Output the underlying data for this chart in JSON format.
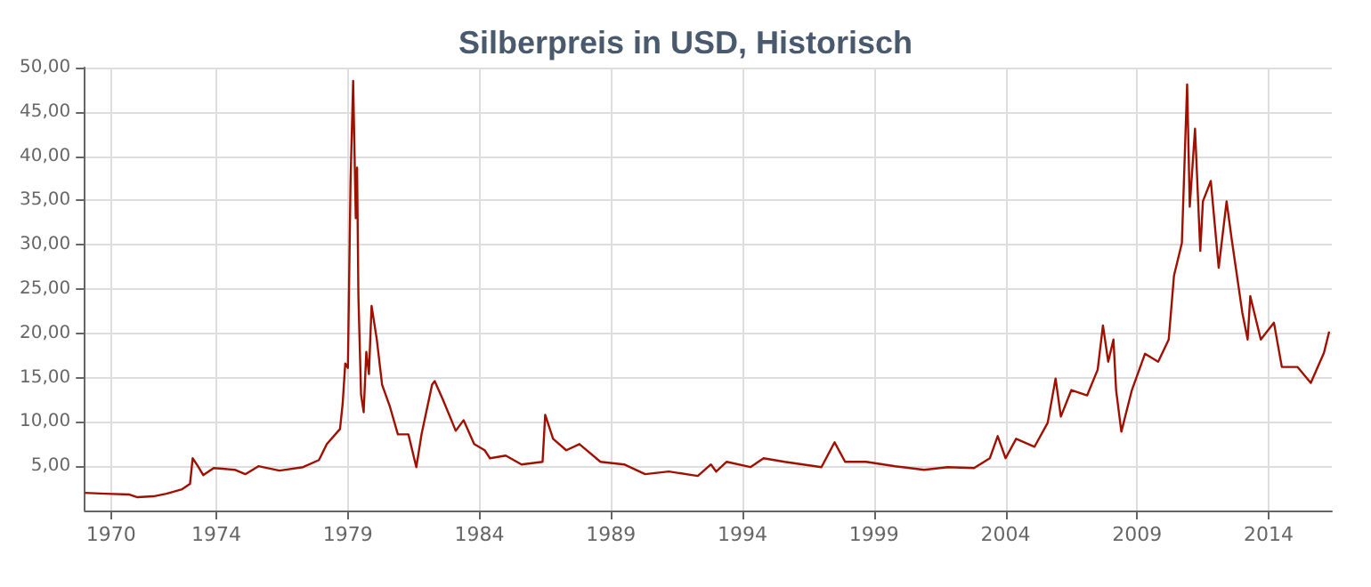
{
  "chart_data": {
    "type": "line",
    "title": "Silberpreis in USD, Historisch",
    "x": [
      1969.0,
      1969.8,
      1970.7,
      1971.0,
      1971.6,
      1972.1,
      1972.7,
      1973.0,
      1973.1,
      1973.3,
      1973.5,
      1973.9,
      1974.7,
      1975.1,
      1975.6,
      1976.4,
      1977.3,
      1977.9,
      1978.2,
      1978.7,
      1978.8,
      1978.9,
      1979.0,
      1979.1,
      1979.2,
      1979.3,
      1979.35,
      1979.4,
      1979.5,
      1979.6,
      1979.7,
      1979.8,
      1979.9,
      1980.1,
      1980.3,
      1980.6,
      1980.9,
      1981.3,
      1981.6,
      1981.8,
      1982.2,
      1982.3,
      1982.6,
      1983.1,
      1983.4,
      1983.8,
      1984.2,
      1984.4,
      1985.0,
      1985.6,
      1986.4,
      1986.5,
      1986.8,
      1987.3,
      1987.8,
      1988.6,
      1989.5,
      1990.3,
      1991.2,
      1992.3,
      1992.8,
      1993.0,
      1993.4,
      1994.3,
      1994.8,
      1995.6,
      1997.0,
      1997.5,
      1997.9,
      1998.7,
      1999.8,
      2000.9,
      2001.8,
      2002.8,
      2003.4,
      2003.7,
      2004.0,
      2004.4,
      2005.1,
      2005.6,
      2005.9,
      2006.1,
      2006.5,
      2007.1,
      2007.5,
      2007.7,
      2007.9,
      2008.1,
      2008.2,
      2008.4,
      2008.8,
      2009.3,
      2009.8,
      2010.2,
      2010.4,
      2010.7,
      2010.9,
      2011.0,
      2011.2,
      2011.4,
      2011.5,
      2011.8,
      2012.1,
      2012.4,
      2012.6,
      2013.0,
      2013.2,
      2013.3,
      2013.7,
      2014.2,
      2014.5,
      2015.1,
      2015.6,
      2016.1,
      2016.3
    ],
    "series": [
      {
        "color": "#a01000",
        "values": [
          2.0,
          1.9,
          1.8,
          1.5,
          1.6,
          1.9,
          2.4,
          3.0,
          5.9,
          5.0,
          4.0,
          4.8,
          4.6,
          4.1,
          5.0,
          4.5,
          4.9,
          5.7,
          7.5,
          9.2,
          12.0,
          16.6,
          16.1,
          37.0,
          48.5,
          33.0,
          38.7,
          24.2,
          13.1,
          11.1,
          17.9,
          15.4,
          23.1,
          19.3,
          14.2,
          11.7,
          8.6,
          8.6,
          4.9,
          8.6,
          14.2,
          14.6,
          12.6,
          9.0,
          10.2,
          7.5,
          6.8,
          5.9,
          6.2,
          5.2,
          5.5,
          10.8,
          8.1,
          6.8,
          7.5,
          5.5,
          5.2,
          4.1,
          4.4,
          3.9,
          5.2,
          4.4,
          5.5,
          4.9,
          5.9,
          5.5,
          4.9,
          7.7,
          5.5,
          5.5,
          5.0,
          4.6,
          4.9,
          4.8,
          5.9,
          8.4,
          5.9,
          8.1,
          7.2,
          9.9,
          14.9,
          10.6,
          13.6,
          13.0,
          15.9,
          20.9,
          16.8,
          19.3,
          13.6,
          8.9,
          13.6,
          17.7,
          16.8,
          19.3,
          26.5,
          30.2,
          48.1,
          34.3,
          43.1,
          29.3,
          34.9,
          37.2,
          27.4,
          34.9,
          30.5,
          22.3,
          19.3,
          24.2,
          19.3,
          21.2,
          16.2,
          16.2,
          14.4,
          17.8,
          20.2
        ]
      }
    ],
    "xlim": [
      1969.0,
      2016.4
    ],
    "xticks": [
      1970,
      1974,
      1979,
      1984,
      1989,
      1994,
      1999,
      2004,
      2009,
      2014
    ],
    "ylim": [
      0,
      50
    ],
    "yticks": [
      {
        "value": 5,
        "label": "5,00"
      },
      {
        "value": 10,
        "label": "10,00"
      },
      {
        "value": 15,
        "label": "15,00"
      },
      {
        "value": 20,
        "label": "20,00"
      },
      {
        "value": 25,
        "label": "25,00"
      },
      {
        "value": 30,
        "label": "30,00"
      },
      {
        "value": 35,
        "label": "35,00"
      },
      {
        "value": 40,
        "label": "40,00"
      },
      {
        "value": 45,
        "label": "45,00"
      },
      {
        "value": 50,
        "label": "50,00"
      }
    ],
    "grid": true,
    "marker": "none",
    "line_style": "solid"
  }
}
